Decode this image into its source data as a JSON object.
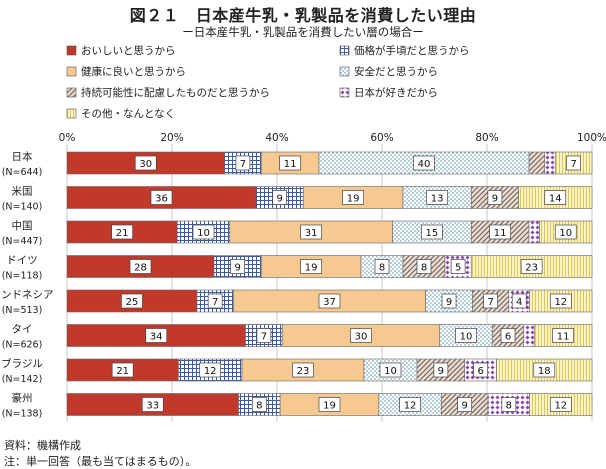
{
  "title": "図２１　日本産牛乳・乳製品を消費したい理由",
  "subtitle": "ー日本産牛乳・乳製品を消費したい層の場合ー",
  "notes": [
    "資料：機構作成",
    "注：単一回答（最も当てはまるもの）。"
  ],
  "chart_data": {
    "type": "bar",
    "orientation": "horizontal",
    "stacked": "percent",
    "categories": [
      {
        "name": "日本",
        "n": "(N=644)"
      },
      {
        "name": "米国",
        "n": "(N=140)"
      },
      {
        "name": "中国",
        "n": "(N=447)"
      },
      {
        "name": "ドイツ",
        "n": "(N=118)"
      },
      {
        "name": "インドネシア",
        "n": "(N=513)"
      },
      {
        "name": "タイ",
        "n": "(N=626)"
      },
      {
        "name": "ブラジル",
        "n": "(N=142)"
      },
      {
        "name": "豪州",
        "n": "(N=138)"
      }
    ],
    "x_ticks": [
      "0%",
      "20%",
      "40%",
      "60%",
      "80%",
      "100%"
    ],
    "xlim": [
      0,
      100
    ],
    "legend_position": "top",
    "series": [
      {
        "name": "おいしいと思うから",
        "color": "#c0392b",
        "pattern": "solid",
        "values": [
          30,
          36,
          21,
          28,
          25,
          34,
          21,
          33
        ]
      },
      {
        "name": "価格が手頃だと思うから",
        "color": "#3a5bab",
        "pattern": "grid",
        "values": [
          7,
          9,
          10,
          9,
          7,
          7,
          12,
          8
        ]
      },
      {
        "name": "健康に良いと思うから",
        "color": "#f5c98f",
        "pattern": "solid-light",
        "values": [
          11,
          19,
          31,
          19,
          37,
          30,
          23,
          19
        ]
      },
      {
        "name": "安全だと思うから",
        "color": "#6fa8c8",
        "pattern": "dots",
        "values": [
          40,
          13,
          15,
          8,
          9,
          10,
          10,
          12
        ]
      },
      {
        "name": "持続可能性に配慮したものだと思うから",
        "color": "#9b8a7a",
        "pattern": "diagonal",
        "values": [
          3,
          9,
          11,
          8,
          7,
          6,
          9,
          9
        ]
      },
      {
        "name": "日本が好きだから",
        "color": "#8e44ad",
        "pattern": "diamonds",
        "values": [
          2,
          0,
          2,
          5,
          4,
          2,
          6,
          8
        ]
      },
      {
        "name": "その他・なんとなく",
        "color": "#e8d26a",
        "pattern": "vlines",
        "values": [
          7,
          14,
          10,
          23,
          12,
          11,
          18,
          12
        ]
      }
    ],
    "data_labels": [
      [
        "30",
        "7",
        "11",
        "40",
        "",
        "",
        "7"
      ],
      [
        "36",
        "9",
        "19",
        "13",
        "9",
        "",
        "14"
      ],
      [
        "21",
        "10",
        "31",
        "15",
        "11",
        "",
        "10"
      ],
      [
        "28",
        "9",
        "19",
        "8",
        "8",
        "5",
        "23"
      ],
      [
        "25",
        "7",
        "37",
        "9",
        "7",
        "4",
        "12"
      ],
      [
        "34",
        "7",
        "30",
        "10",
        "6",
        "",
        "11"
      ],
      [
        "21",
        "12",
        "23",
        "10",
        "9",
        "6",
        "18"
      ],
      [
        "33",
        "8",
        "19",
        "12",
        "9",
        "8",
        "12"
      ]
    ]
  }
}
